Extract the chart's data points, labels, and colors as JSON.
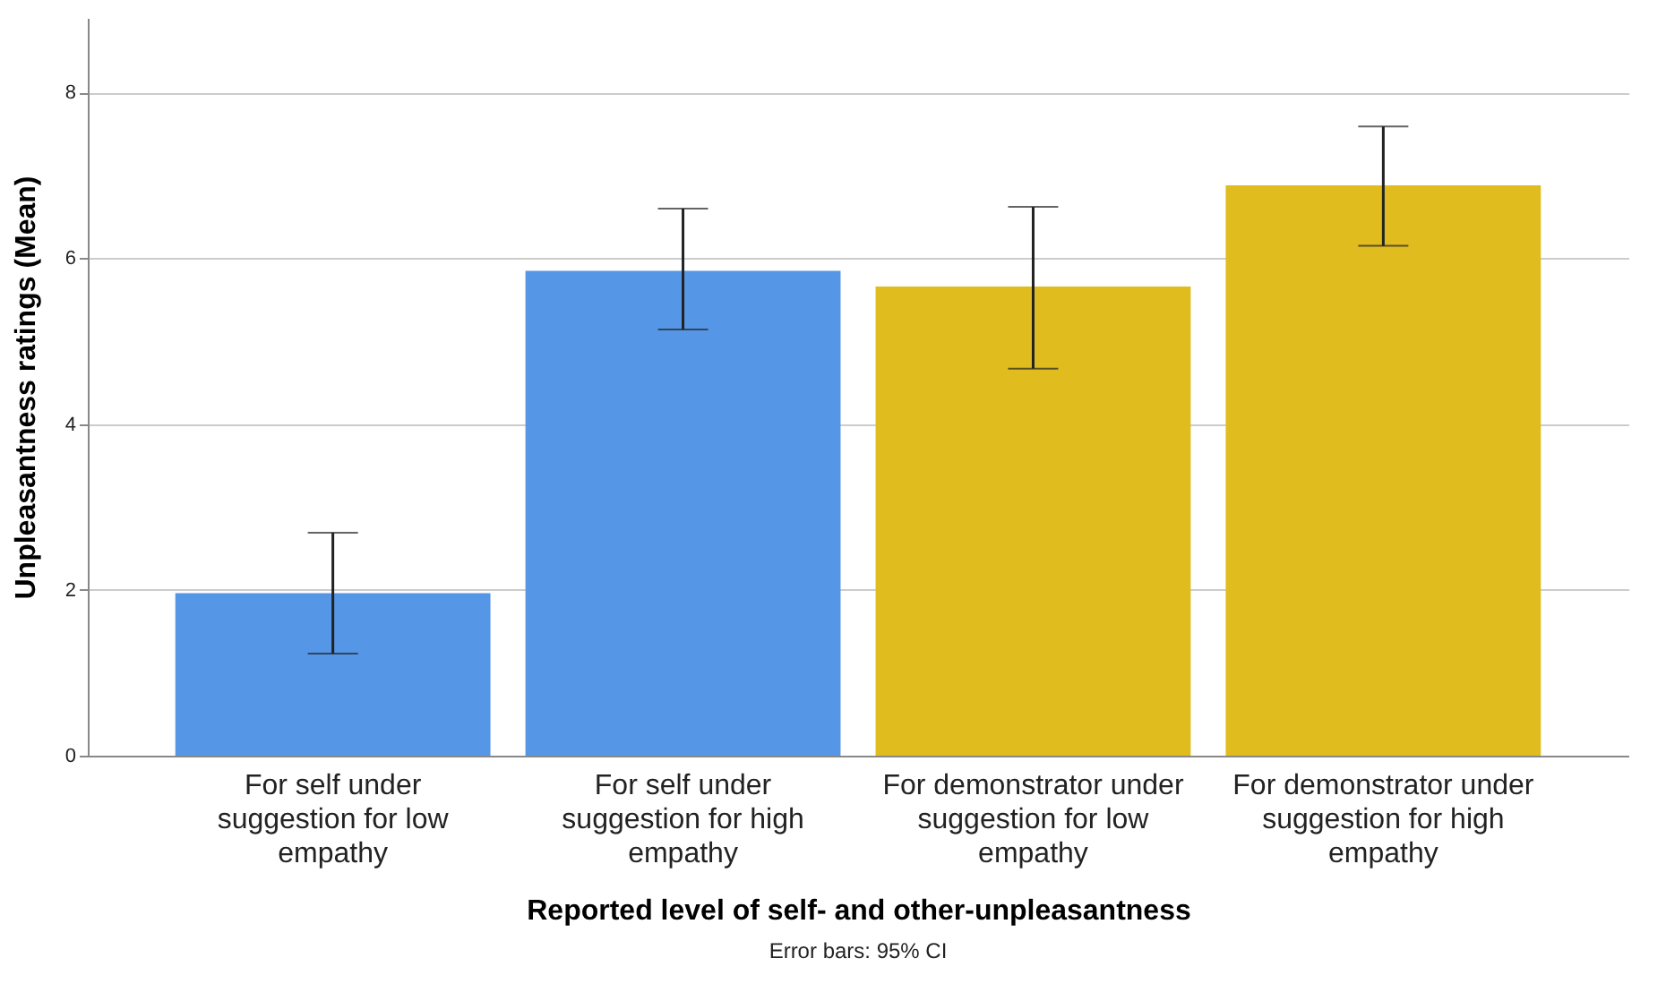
{
  "chart_data": {
    "type": "bar",
    "xlabel": "Reported level of self- and other-unpleasantness",
    "ylabel": "Unpleasantness ratings (Mean)",
    "categories": [
      "For self under suggestion for low empathy",
      "For self under suggestion for high empathy",
      "For demonstrator under suggestion for low empathy",
      "For demonstrator under suggestion for high empathy"
    ],
    "values": [
      1.96,
      5.85,
      5.66,
      6.88
    ],
    "errors": [
      [
        1.23,
        2.69
      ],
      [
        5.14,
        6.6
      ],
      [
        4.67,
        6.62
      ],
      [
        6.15,
        7.59
      ]
    ],
    "colors": [
      "#5596e6",
      "#5596e6",
      "#e0bc1f",
      "#e0bc1f"
    ],
    "ylim": [
      0,
      8.9
    ],
    "yticks": [
      0,
      2,
      4,
      6,
      8
    ],
    "grid": "y",
    "annotations": [
      "Error bars: 95% CI"
    ]
  }
}
